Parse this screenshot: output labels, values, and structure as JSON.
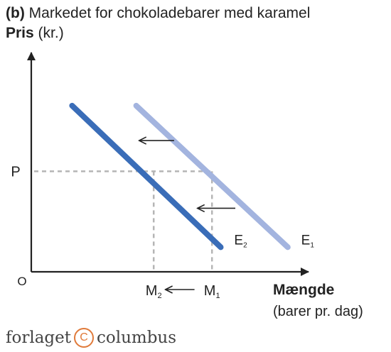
{
  "header": {
    "panel_label": "(b)",
    "title": "Markedet for chokoladebarer med karamel"
  },
  "axes": {
    "y_label_bold": "Pris",
    "y_label_unit": "(kr.)",
    "x_label": "Mængde",
    "x_unit": "(barer pr. dag)",
    "origin_label": "O"
  },
  "chart_data": {
    "type": "line",
    "title": "Markedet for chokoladebarer med karamel",
    "ylabel": "Pris (kr.)",
    "xlabel": "Mængde (barer pr. dag)",
    "xlim": [
      0,
      10
    ],
    "ylim": [
      0,
      10
    ],
    "grid": false,
    "series": [
      {
        "name": "E₁",
        "base": "E",
        "sub": "1",
        "role": "original demand",
        "color": "#a3b4df",
        "points": [
          [
            3.6,
            8.1
          ],
          [
            8.8,
            1.2
          ]
        ]
      },
      {
        "name": "E₂",
        "base": "E",
        "sub": "2",
        "role": "shifted demand",
        "color": "#3a6db8",
        "points": [
          [
            1.4,
            8.1
          ],
          [
            6.5,
            1.2
          ]
        ]
      }
    ],
    "price_level": {
      "label": "P",
      "value": 4.9
    },
    "quantities": [
      {
        "base": "M",
        "sub": "2",
        "value": 4.2
      },
      {
        "base": "M",
        "sub": "1",
        "value": 6.2
      }
    ],
    "shift_arrows": [
      {
        "from": [
          4.9,
          6.4
        ],
        "to": [
          3.7,
          6.4
        ]
      },
      {
        "from": [
          7.0,
          3.1
        ],
        "to": [
          5.7,
          3.1
        ]
      }
    ],
    "axis_shift_arrow": {
      "from": 5.6,
      "to": 4.6
    }
  },
  "footer": {
    "brand_left": "forlaget",
    "brand_mark": "C",
    "brand_right": "columbus"
  },
  "colors": {
    "axis": "#222222",
    "guide": "#b5b5b5",
    "brand_mark": "#e07a3a"
  }
}
